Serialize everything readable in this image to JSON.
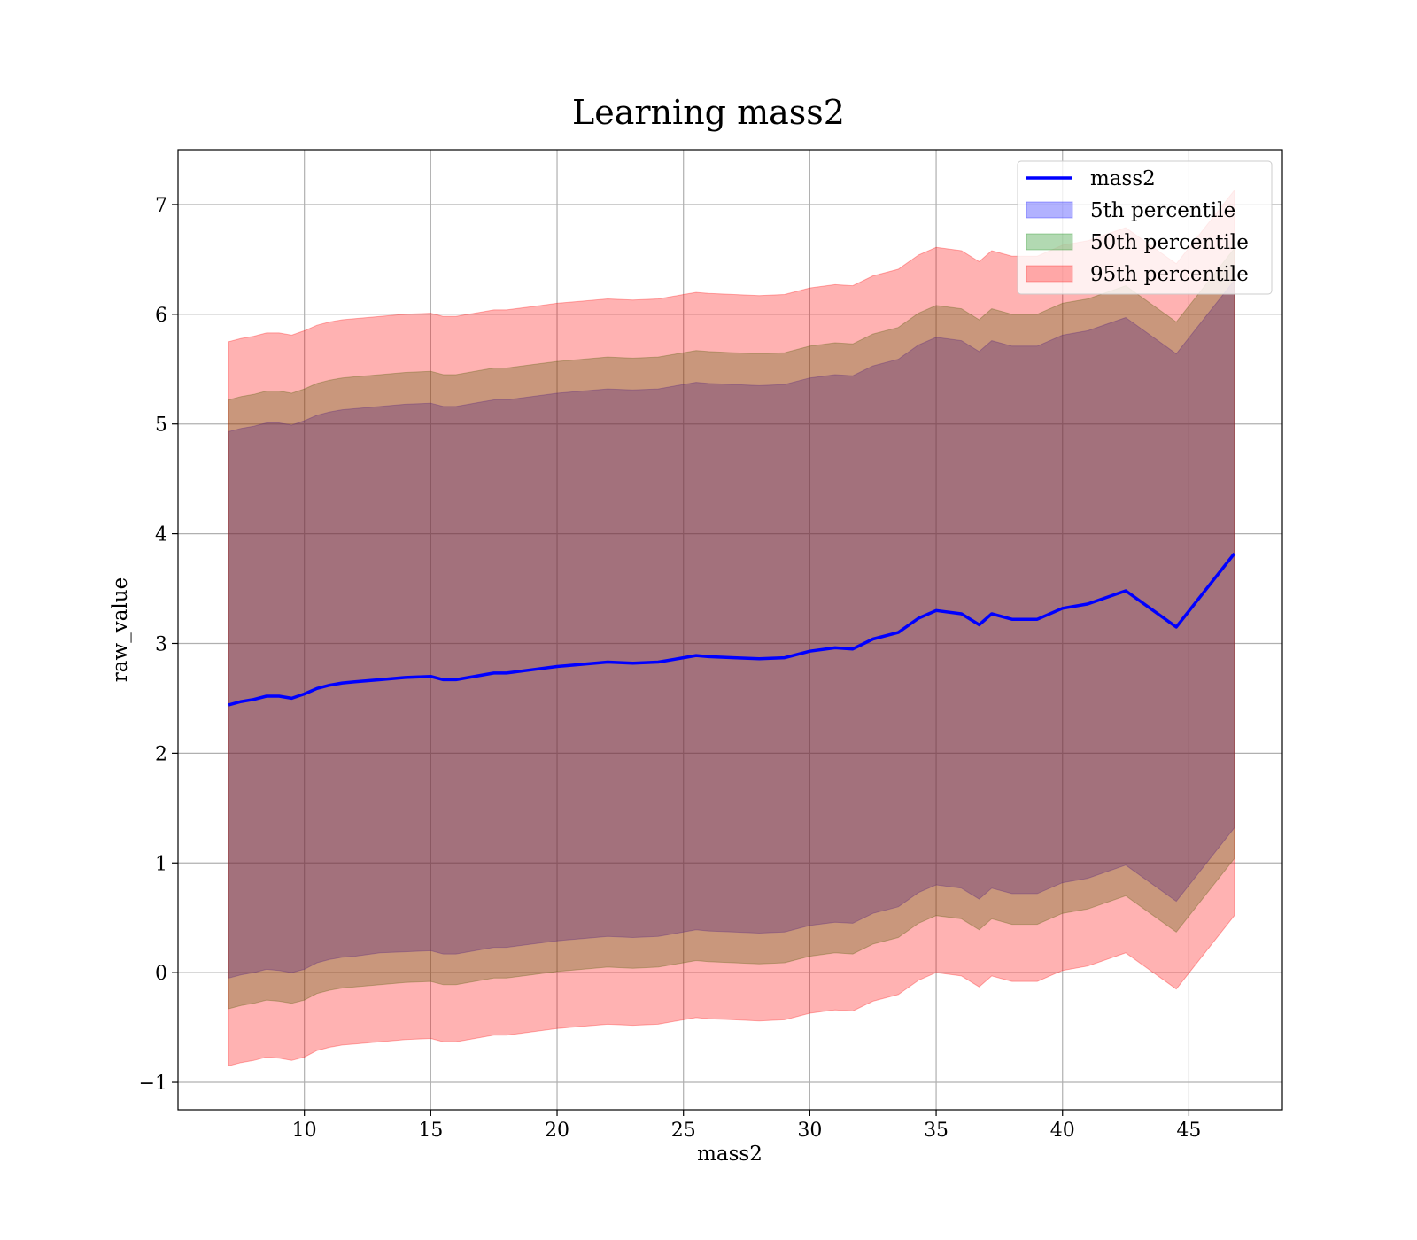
{
  "chart_data": {
    "type": "line",
    "title": "Learning mass2",
    "xlabel": "mass2",
    "ylabel": "raw_value",
    "xlim": [
      5.0,
      48.7
    ],
    "ylim": [
      -1.25,
      7.5
    ],
    "xticks": [
      10,
      15,
      20,
      25,
      30,
      35,
      40,
      45
    ],
    "yticks": [
      -1,
      0,
      1,
      2,
      3,
      4,
      5,
      6,
      7
    ],
    "xtick_labels": [
      "10",
      "15",
      "20",
      "25",
      "30",
      "35",
      "40",
      "45"
    ],
    "ytick_labels": [
      "−1",
      "0",
      "1",
      "2",
      "3",
      "4",
      "5",
      "6",
      "7"
    ],
    "grid": true,
    "legend_position": "top-right",
    "x": [
      7.0,
      7.5,
      8.0,
      8.5,
      9.0,
      9.5,
      10.0,
      10.5,
      11.0,
      11.5,
      12.0,
      13.0,
      14.0,
      15.0,
      15.5,
      16.0,
      16.5,
      17.0,
      17.5,
      18.0,
      19.0,
      20.0,
      21.0,
      22.0,
      23.0,
      24.0,
      25.0,
      25.5,
      26.0,
      27.0,
      28.0,
      29.0,
      30.0,
      31.0,
      31.7,
      32.5,
      33.5,
      34.3,
      35.0,
      36.0,
      36.7,
      37.2,
      38.0,
      39.0,
      40.0,
      41.0,
      42.5,
      44.5,
      46.8
    ],
    "series": [
      {
        "name": "mass2",
        "kind": "line",
        "color": "#0000ff",
        "values": [
          2.44,
          2.47,
          2.49,
          2.52,
          2.52,
          2.5,
          2.54,
          2.59,
          2.62,
          2.64,
          2.65,
          2.67,
          2.69,
          2.7,
          2.67,
          2.67,
          2.69,
          2.71,
          2.73,
          2.73,
          2.76,
          2.79,
          2.81,
          2.83,
          2.82,
          2.83,
          2.87,
          2.89,
          2.88,
          2.87,
          2.86,
          2.87,
          2.93,
          2.96,
          2.95,
          3.04,
          3.1,
          3.23,
          3.3,
          3.27,
          3.17,
          3.27,
          3.22,
          3.22,
          3.32,
          3.36,
          3.48,
          3.15,
          3.82
        ]
      },
      {
        "name": "5th percentile",
        "kind": "band",
        "color": "#0000ff",
        "lower": [
          -0.05,
          -0.02,
          0.0,
          0.03,
          0.02,
          0.0,
          0.03,
          0.09,
          0.12,
          0.14,
          0.15,
          0.18,
          0.19,
          0.2,
          0.17,
          0.17,
          0.19,
          0.21,
          0.23,
          0.23,
          0.26,
          0.29,
          0.31,
          0.33,
          0.32,
          0.33,
          0.37,
          0.39,
          0.38,
          0.37,
          0.36,
          0.37,
          0.43,
          0.46,
          0.45,
          0.54,
          0.6,
          0.73,
          0.8,
          0.77,
          0.67,
          0.77,
          0.72,
          0.72,
          0.82,
          0.86,
          0.98,
          0.65,
          1.32
        ],
        "upper": [
          4.93,
          4.96,
          4.98,
          5.01,
          5.01,
          4.99,
          5.03,
          5.08,
          5.11,
          5.13,
          5.14,
          5.16,
          5.18,
          5.19,
          5.16,
          5.16,
          5.18,
          5.2,
          5.22,
          5.22,
          5.25,
          5.28,
          5.3,
          5.32,
          5.31,
          5.32,
          5.36,
          5.38,
          5.37,
          5.36,
          5.35,
          5.36,
          5.42,
          5.45,
          5.44,
          5.53,
          5.59,
          5.72,
          5.79,
          5.76,
          5.66,
          5.76,
          5.71,
          5.71,
          5.81,
          5.85,
          5.97,
          5.64,
          6.31
        ]
      },
      {
        "name": "50th percentile",
        "kind": "band",
        "color": "#008000",
        "lower": [
          -0.33,
          -0.3,
          -0.28,
          -0.25,
          -0.26,
          -0.28,
          -0.25,
          -0.19,
          -0.16,
          -0.14,
          -0.13,
          -0.11,
          -0.09,
          -0.08,
          -0.11,
          -0.11,
          -0.09,
          -0.07,
          -0.05,
          -0.05,
          -0.02,
          0.01,
          0.03,
          0.05,
          0.04,
          0.05,
          0.09,
          0.11,
          0.1,
          0.09,
          0.08,
          0.09,
          0.15,
          0.18,
          0.17,
          0.26,
          0.32,
          0.45,
          0.52,
          0.49,
          0.39,
          0.49,
          0.44,
          0.44,
          0.54,
          0.58,
          0.7,
          0.37,
          1.04
        ],
        "upper": [
          5.22,
          5.25,
          5.27,
          5.3,
          5.3,
          5.28,
          5.32,
          5.37,
          5.4,
          5.42,
          5.43,
          5.45,
          5.47,
          5.48,
          5.45,
          5.45,
          5.47,
          5.49,
          5.51,
          5.51,
          5.54,
          5.57,
          5.59,
          5.61,
          5.6,
          5.61,
          5.65,
          5.67,
          5.66,
          5.65,
          5.64,
          5.65,
          5.71,
          5.74,
          5.73,
          5.82,
          5.88,
          6.01,
          6.08,
          6.05,
          5.95,
          6.05,
          6.0,
          6.0,
          6.1,
          6.14,
          6.26,
          5.93,
          6.6
        ]
      },
      {
        "name": "95th percentile",
        "kind": "band",
        "color": "#ff0000",
        "lower": [
          -0.85,
          -0.82,
          -0.8,
          -0.77,
          -0.78,
          -0.8,
          -0.77,
          -0.71,
          -0.68,
          -0.66,
          -0.65,
          -0.63,
          -0.61,
          -0.6,
          -0.63,
          -0.63,
          -0.61,
          -0.59,
          -0.57,
          -0.57,
          -0.54,
          -0.51,
          -0.49,
          -0.47,
          -0.48,
          -0.47,
          -0.43,
          -0.41,
          -0.42,
          -0.43,
          -0.44,
          -0.43,
          -0.37,
          -0.34,
          -0.35,
          -0.26,
          -0.2,
          -0.07,
          0.0,
          -0.03,
          -0.13,
          -0.03,
          -0.08,
          -0.08,
          0.02,
          0.06,
          0.18,
          -0.15,
          0.52
        ],
        "upper": [
          5.75,
          5.78,
          5.8,
          5.83,
          5.83,
          5.81,
          5.85,
          5.9,
          5.93,
          5.95,
          5.96,
          5.98,
          6.0,
          6.01,
          5.98,
          5.98,
          6.0,
          6.02,
          6.04,
          6.04,
          6.07,
          6.1,
          6.12,
          6.14,
          6.13,
          6.14,
          6.18,
          6.2,
          6.19,
          6.18,
          6.17,
          6.18,
          6.24,
          6.27,
          6.26,
          6.35,
          6.41,
          6.54,
          6.61,
          6.58,
          6.48,
          6.58,
          6.53,
          6.53,
          6.63,
          6.67,
          6.79,
          6.46,
          7.13
        ]
      }
    ]
  }
}
